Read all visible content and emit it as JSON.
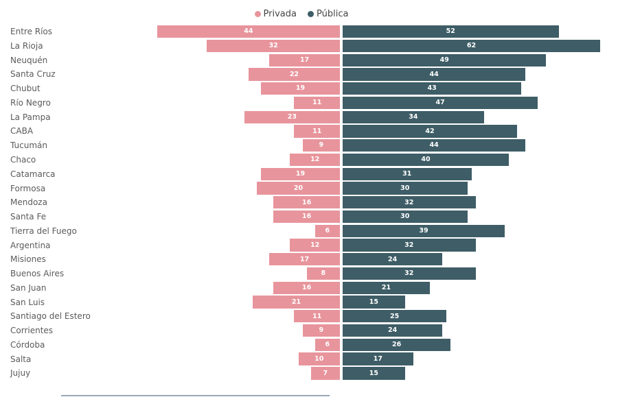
{
  "chart_data": {
    "type": "bar",
    "subtype": "diverging-horizontal",
    "title": "",
    "xlabel": "",
    "ylabel": "",
    "grid": false,
    "legend_position": "top-center",
    "value_labels": "inside-center, white, bold",
    "categories": [
      "Entre Ríos",
      "La Rioja",
      "Neuquén",
      "Santa Cruz",
      "Chubut",
      "Río Negro",
      "La Pampa",
      "CABA",
      "Tucumán",
      "Chaco",
      "Catamarca",
      "Formosa",
      "Mendoza",
      "Santa Fe",
      "Tierra del Fuego",
      "Argentina",
      "Misiones",
      "Buenos Aires",
      "San Juan",
      "San Luis",
      "Santiago del Estero",
      "Corrientes",
      "Córdoba",
      "Salta",
      "Jujuy"
    ],
    "series": [
      {
        "name": "Privada",
        "direction": "left",
        "color": "#E8949C",
        "values": [
          44,
          32,
          17,
          22,
          19,
          11,
          23,
          11,
          9,
          12,
          19,
          20,
          16,
          16,
          6,
          12,
          17,
          8,
          16,
          21,
          11,
          9,
          6,
          10,
          7
        ]
      },
      {
        "name": "Pública",
        "direction": "right",
        "color": "#3E5D66",
        "values": [
          52,
          62,
          49,
          44,
          43,
          47,
          34,
          42,
          44,
          40,
          31,
          30,
          32,
          30,
          39,
          32,
          24,
          32,
          21,
          15,
          25,
          24,
          26,
          17,
          15
        ]
      }
    ]
  },
  "colors": {
    "background": "#ffffff",
    "privada": "#E8949C",
    "publica": "#3E5D66",
    "category_text": "#5a5a5a",
    "legend_text": "#444444",
    "value_text": "#ffffff",
    "baseline": "#44607e"
  }
}
